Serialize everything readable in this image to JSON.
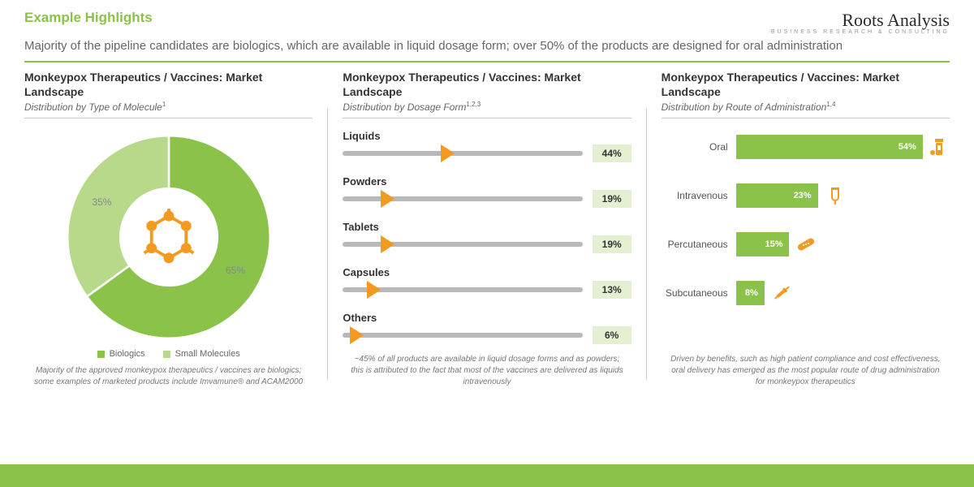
{
  "colors": {
    "accent": "#8bc34a",
    "accent_light": "#b8d98a",
    "accent_box": "#e4f0d1",
    "text_heading": "#333333",
    "text_body": "#666666",
    "text_muted": "#888888",
    "slider_track": "#b9b9b9",
    "icon_orange": "#f39a1f",
    "background": "#ffffff"
  },
  "header": {
    "section_title": "Example Highlights",
    "logo_main": "Roots Analysis",
    "logo_sub": "BUSINESS RESEARCH & CONSULTING",
    "subtitle": "Majority of the pipeline candidates are biologics, which are available in liquid dosage form; over 50% of the products are designed for oral administration"
  },
  "panel1": {
    "title": "Monkeypox Therapeutics / Vaccines: Market Landscape",
    "subtitle_text": "Distribution by Type of Molecule",
    "subtitle_sup": "1",
    "donut": {
      "type": "donut",
      "slices": [
        {
          "label": "Biologics",
          "value": 65,
          "color": "#8bc34a",
          "label_text": "65%"
        },
        {
          "label": "Small Molecules",
          "value": 35,
          "color": "#b8d98a",
          "label_text": "35%"
        }
      ],
      "inner_radius_pct": 46,
      "outer_radius_pct": 96,
      "label_color": "#888888",
      "label_fontsize": 12
    },
    "legend": [
      {
        "swatch": "#8bc34a",
        "label": "Biologics"
      },
      {
        "swatch": "#b8d98a",
        "label": "Small Molecules"
      }
    ],
    "footnote": "Majority of the approved monkeypox therapeutics / vaccines are biologics; some examples of marketed products include Imvamune® and ACAM2000"
  },
  "panel2": {
    "title": "Monkeypox Therapeutics / Vaccines: Market Landscape",
    "subtitle_text": "Distribution by Dosage Form",
    "subtitle_sup": "1,2,3",
    "sliders": {
      "type": "slider-bars",
      "track_color": "#b9b9b9",
      "marker_fill": "#ffffff",
      "marker_stroke": "#f39a1f",
      "value_box_bg": "#e4f0d1",
      "max_value": 100,
      "items": [
        {
          "label": "Liquids",
          "value": 44,
          "value_text": "44%"
        },
        {
          "label": "Powders",
          "value": 19,
          "value_text": "19%"
        },
        {
          "label": "Tablets",
          "value": 19,
          "value_text": "19%"
        },
        {
          "label": "Capsules",
          "value": 13,
          "value_text": "13%"
        },
        {
          "label": "Others",
          "value": 6,
          "value_text": "6%"
        }
      ]
    },
    "footnote": "~45% of all products are available in liquid dosage forms and as powders; this is attributed to the fact that most of the vaccines are delivered as liquids intravenously"
  },
  "panel3": {
    "title": "Monkeypox Therapeutics / Vaccines: Market Landscape",
    "subtitle_text": "Distribution by Route of Administration",
    "subtitle_sup": "1,4",
    "bars": {
      "type": "bar-horizontal",
      "bar_color": "#8bc34a",
      "text_color": "#ffffff",
      "icon_color": "#f39a1f",
      "max_value": 60,
      "items": [
        {
          "label": "Oral",
          "value": 54,
          "value_text": "54%",
          "icon": "pill-bottle"
        },
        {
          "label": "Intravenous",
          "value": 23,
          "value_text": "23%",
          "icon": "iv-bag"
        },
        {
          "label": "Percutaneous",
          "value": 15,
          "value_text": "15%",
          "icon": "bandage"
        },
        {
          "label": "Subcutaneous",
          "value": 8,
          "value_text": "8%",
          "icon": "syringe"
        }
      ]
    },
    "footnote": "Driven by benefits, such as high patient compliance and cost effectiveness, oral delivery has emerged as the most popular route of drug administration for monkeypox therapeutics"
  }
}
